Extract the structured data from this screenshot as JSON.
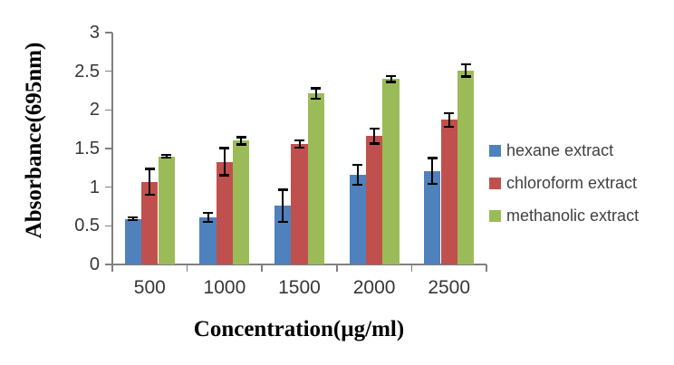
{
  "chart_data": {
    "type": "bar",
    "title": "",
    "xlabel": "Concentration(µg/ml)",
    "ylabel": "Absorbance(695nm)",
    "categories": [
      "500",
      "1000",
      "1500",
      "2000",
      "2500"
    ],
    "series": [
      {
        "name": "hexane extract",
        "color": "#4F81BD",
        "values": [
          0.59,
          0.61,
          0.76,
          1.16,
          1.21
        ],
        "errors": [
          0.02,
          0.06,
          0.21,
          0.13,
          0.17
        ]
      },
      {
        "name": "chloroform extract",
        "color": "#C0504D",
        "values": [
          1.07,
          1.33,
          1.56,
          1.66,
          1.87
        ],
        "errors": [
          0.17,
          0.18,
          0.05,
          0.1,
          0.09
        ]
      },
      {
        "name": "methanolic extract",
        "color": "#9BBB59",
        "values": [
          1.4,
          1.6,
          2.21,
          2.4,
          2.51
        ],
        "errors": [
          0.02,
          0.05,
          0.07,
          0.04,
          0.08
        ]
      }
    ],
    "ylim": [
      0,
      3
    ],
    "ytick_step": 0.5,
    "ytick_labels": [
      "0",
      "0.5",
      "1",
      "1.5",
      "2",
      "2.5",
      "3"
    ],
    "error_bars": true,
    "grid": false,
    "legend_position": "right",
    "colors": {
      "axis_line": "#808080",
      "tick_label": "#363636",
      "legend_text": "#404040",
      "axis_title": "#000000",
      "error_bar": "#000000",
      "frame_top": "#262626",
      "frame_side": "#808080",
      "background": "#FFFFFF"
    }
  }
}
